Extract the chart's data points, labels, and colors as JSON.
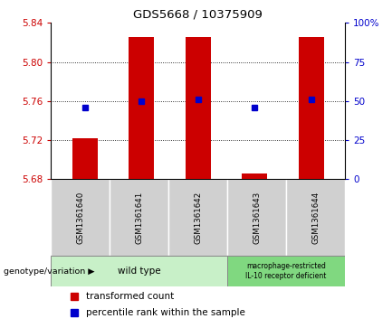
{
  "title": "GDS5668 / 10375909",
  "samples": [
    "GSM1361640",
    "GSM1361641",
    "GSM1361642",
    "GSM1361643",
    "GSM1361644"
  ],
  "bar_bottoms": [
    5.68,
    5.68,
    5.68,
    5.68,
    5.68
  ],
  "bar_tops": [
    5.722,
    5.826,
    5.826,
    5.686,
    5.826
  ],
  "percentile_ranks": [
    46,
    50,
    51,
    46,
    51
  ],
  "ylim_left": [
    5.68,
    5.84
  ],
  "ylim_right": [
    0,
    100
  ],
  "yticks_left": [
    5.68,
    5.72,
    5.76,
    5.8,
    5.84
  ],
  "yticks_right": [
    0,
    25,
    50,
    75,
    100
  ],
  "bar_color": "#cc0000",
  "dot_color": "#0000cc",
  "sample_bg": "#d0d0d0",
  "genotype_wt_color": "#c8f0c8",
  "genotype_mac_color": "#80d880",
  "wt_samples": [
    0,
    1,
    2
  ],
  "mac_samples": [
    3,
    4
  ],
  "wt_label": "wild type",
  "mac_label": "macrophage-restricted\nIL-10 receptor deficient",
  "legend_items": [
    {
      "color": "#cc0000",
      "label": "transformed count"
    },
    {
      "color": "#0000cc",
      "label": "percentile rank within the sample"
    }
  ],
  "title_color": "#000000",
  "tick_color_left": "#cc0000",
  "tick_color_right": "#0000cc",
  "bar_width": 0.45,
  "figsize": [
    4.33,
    3.63
  ],
  "dpi": 100
}
